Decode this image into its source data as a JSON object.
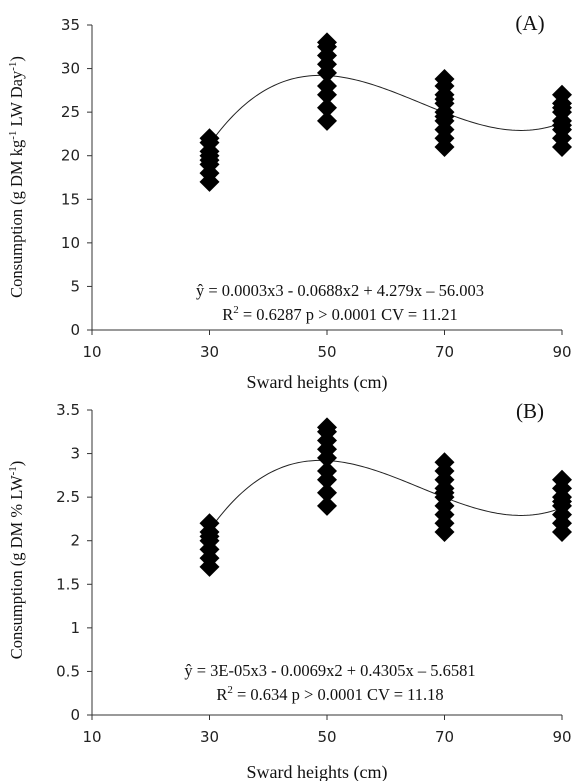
{
  "chart_data": [
    {
      "type": "scatter",
      "panel_label": "(A)",
      "xlabel": "Sward heights (cm)",
      "ylabel_main": "Consumption (g DM kg",
      "ylabel_sup1": "-1",
      "ylabel_mid": " LW Day",
      "ylabel_sup2": "-1",
      "ylabel_end": ")",
      "xlim": [
        10,
        90
      ],
      "ylim": [
        0,
        35
      ],
      "xticks": [
        10,
        30,
        50,
        70,
        90
      ],
      "yticks": [
        0,
        5,
        10,
        15,
        20,
        25,
        30,
        35
      ],
      "equation": "ŷ = 0.0003x3 - 0.0688x2 + 4.279x – 56.003",
      "stats_prefix": "R",
      "stats_sup": "2",
      "stats_rest": " = 0.6287  p > 0.0001 CV = 11.21",
      "fit": {
        "from": 30,
        "to": 90,
        "peak_x": 50,
        "peak_y": 29.2,
        "min_x": 83,
        "min_y": 22.9,
        "start_y": 21.3,
        "end_y": 23.8
      },
      "series": [
        {
          "x": 30,
          "y": [
            17,
            18,
            19,
            19.5,
            20,
            20.5,
            21.5,
            22
          ]
        },
        {
          "x": 50,
          "y": [
            24,
            25.5,
            27,
            28,
            29.5,
            30.5,
            31.5,
            32.5,
            33
          ]
        },
        {
          "x": 70,
          "y": [
            21,
            22,
            23,
            24,
            24.5,
            25,
            26,
            26.5,
            27,
            28,
            28.8
          ]
        },
        {
          "x": 90,
          "y": [
            21,
            22,
            23,
            23.5,
            24,
            25,
            25.5,
            26,
            27
          ]
        }
      ]
    },
    {
      "type": "scatter",
      "panel_label": "(B)",
      "xlabel": "Sward heights (cm)",
      "ylabel_main": "Consumption (g DM % LW",
      "ylabel_sup1": "-1",
      "ylabel_mid": "",
      "ylabel_sup2": "",
      "ylabel_end": ")",
      "xlim": [
        10,
        90
      ],
      "ylim": [
        0,
        3.5
      ],
      "xticks": [
        10,
        30,
        50,
        70,
        90
      ],
      "yticks": [
        0,
        0.5,
        1,
        1.5,
        2,
        2.5,
        3,
        3.5
      ],
      "equation": "ŷ = 3E-05x3 - 0.0069x2 + 0.4305x – 5.6581",
      "stats_prefix": "R",
      "stats_sup": "2",
      "stats_rest": " = 0.634  p > 0.0001 CV = 11.18",
      "fit": {
        "from": 30,
        "to": 90,
        "peak_x": 50,
        "peak_y": 2.92,
        "min_x": 83,
        "min_y": 2.29,
        "start_y": 2.12,
        "end_y": 2.38
      },
      "series": [
        {
          "x": 30,
          "y": [
            1.7,
            1.8,
            1.9,
            2.0,
            2.05,
            2.1,
            2.2
          ]
        },
        {
          "x": 50,
          "y": [
            2.4,
            2.55,
            2.7,
            2.8,
            2.95,
            3.05,
            3.15,
            3.25,
            3.3
          ]
        },
        {
          "x": 70,
          "y": [
            2.1,
            2.2,
            2.3,
            2.4,
            2.5,
            2.55,
            2.6,
            2.7,
            2.8,
            2.9
          ]
        },
        {
          "x": 90,
          "y": [
            2.1,
            2.2,
            2.3,
            2.4,
            2.45,
            2.5,
            2.6,
            2.7
          ]
        }
      ]
    }
  ]
}
